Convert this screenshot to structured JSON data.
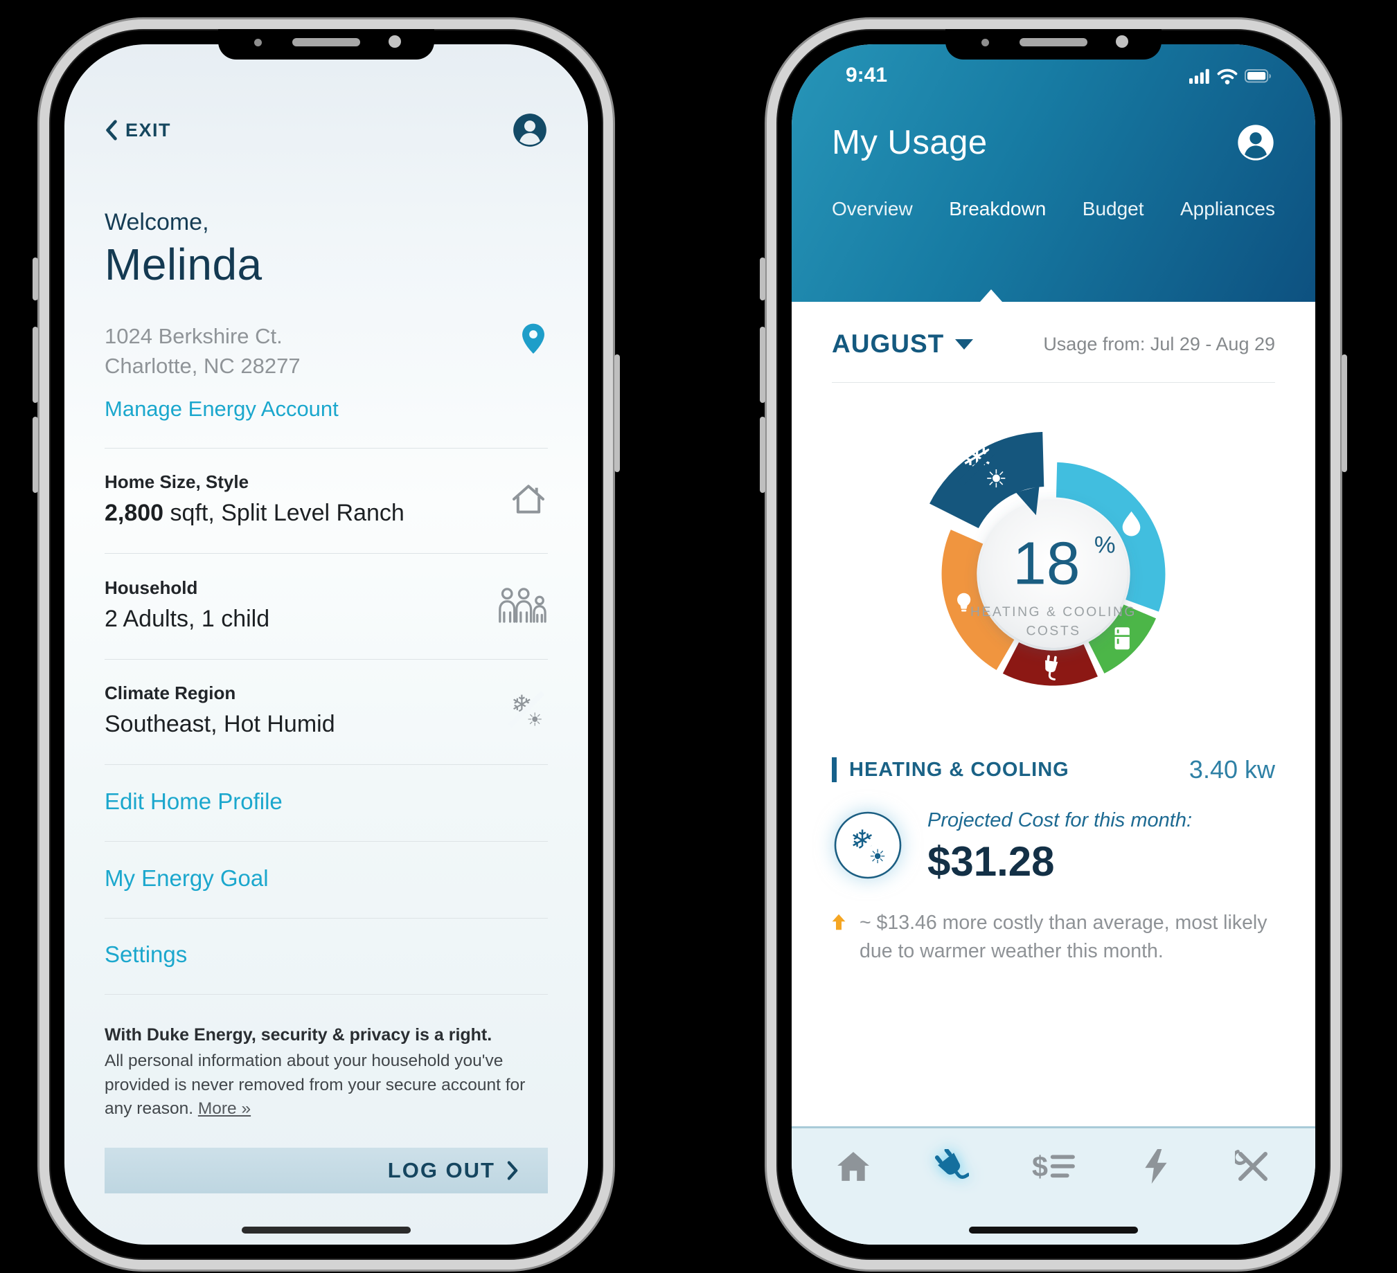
{
  "left_phone": {
    "exit_label": "EXIT",
    "welcome_label": "Welcome,",
    "user_name": "Melinda",
    "address_line1": "1024 Berkshire Ct.",
    "address_line2": "Charlotte, NC 28277",
    "manage_link": "Manage Energy Account",
    "sections": [
      {
        "label": "Home Size, Style",
        "value_bold": "2,800",
        "value_rest": " sqft, Split Level Ranch",
        "icon": "home-icon"
      },
      {
        "label": "Household",
        "value_bold": "",
        "value_rest": "2 Adults, 1 child",
        "icon": "household-icon"
      },
      {
        "label": "Climate Region",
        "value_bold": "",
        "value_rest": "Southeast, Hot Humid",
        "icon": "climate-icon"
      }
    ],
    "links": [
      "Edit Home Profile",
      "My Energy Goal",
      "Settings"
    ],
    "privacy_title": "With Duke Energy, security & privacy is a right.",
    "privacy_body": "All personal information about your household you've provided is never removed from your secure account for any reason. ",
    "privacy_more": "More »",
    "logout_label": "LOG OUT"
  },
  "right_phone": {
    "status_time": "9:41",
    "title": "My Usage",
    "tabs": [
      {
        "label": "Overview",
        "active": false
      },
      {
        "label": "Breakdown",
        "active": true
      },
      {
        "label": "Budget",
        "active": false
      },
      {
        "label": "Appliances",
        "active": false
      }
    ],
    "month_label": "AUGUST",
    "usage_range": "Usage from: Jul 29 - Aug 29",
    "heating_section": {
      "heading": "HEATING & COOLING",
      "kw": "3.40 kw",
      "projected_label": "Projected Cost for this month:",
      "projected_cost": "$31.28",
      "note": "~ $13.46 more costly than average, most likely due to warmer weather this month."
    },
    "nav_icons": [
      "home-icon",
      "plug-icon",
      "billing-icon",
      "energy-icon",
      "tools-icon"
    ],
    "nav_selected_index": 1
  },
  "chart_data": {
    "type": "pie",
    "subtype": "donut-exploded",
    "center_value": "18",
    "center_symbol": "%",
    "center_label_line1": "HEATING & COOLING",
    "center_label_line2": "COSTS",
    "start_angle_deg": 0,
    "gap_deg": 3,
    "segments": [
      {
        "name": "water-heating",
        "percent": 31,
        "color": "#41bedf",
        "icon": "water-drop",
        "exploded": false
      },
      {
        "name": "refrigeration",
        "percent": 12,
        "color": "#4cb648",
        "icon": "refrigerator",
        "exploded": false
      },
      {
        "name": "plug-load",
        "percent": 15,
        "color": "#8c1814",
        "icon": "plug",
        "exploded": false
      },
      {
        "name": "lighting",
        "percent": 24,
        "color": "#f0953f",
        "icon": "lightbulb",
        "exploded": false
      },
      {
        "name": "heating-cooling",
        "percent": 18,
        "color": "#15567d",
        "icon": "snowflake-sun",
        "exploded": true
      }
    ],
    "legend_position": "none",
    "grid": false
  },
  "colors": {
    "teal_link": "#1ba7cd",
    "dark_navy": "#143a52",
    "header_gradient_start": "#2795b8",
    "header_gradient_end": "#0d5180",
    "accent_orange": "#f5a623",
    "donut_center_value": "#1b5e82",
    "nav_selected": "#146f9e"
  }
}
